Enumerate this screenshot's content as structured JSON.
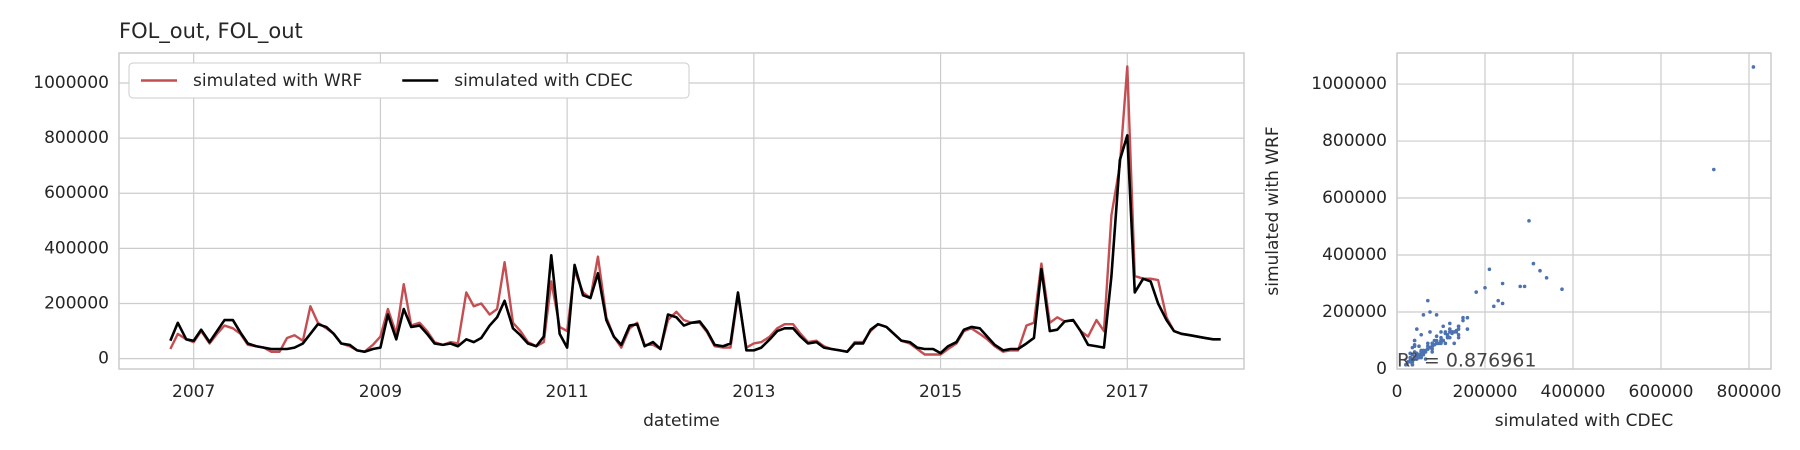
{
  "chart_data": [
    {
      "type": "line",
      "title": "FOL_out, FOL_out",
      "xlabel": "datetime",
      "x": [
        2006.75,
        2006.83,
        2006.92,
        2007,
        2007.08,
        2007.17,
        2007.25,
        2007.33,
        2007.42,
        2007.5,
        2007.58,
        2007.67,
        2007.75,
        2007.83,
        2007.92,
        2008,
        2008.08,
        2008.17,
        2008.25,
        2008.33,
        2008.42,
        2008.5,
        2008.58,
        2008.67,
        2008.75,
        2008.83,
        2008.92,
        2009,
        2009.08,
        2009.17,
        2009.25,
        2009.33,
        2009.42,
        2009.5,
        2009.58,
        2009.67,
        2009.75,
        2009.83,
        2009.92,
        2010,
        2010.08,
        2010.17,
        2010.25,
        2010.33,
        2010.42,
        2010.5,
        2010.58,
        2010.67,
        2010.75,
        2010.83,
        2010.92,
        2011,
        2011.08,
        2011.17,
        2011.25,
        2011.33,
        2011.42,
        2011.5,
        2011.58,
        2011.67,
        2011.75,
        2011.83,
        2011.92,
        2012,
        2012.08,
        2012.17,
        2012.25,
        2012.33,
        2012.42,
        2012.5,
        2012.58,
        2012.67,
        2012.75,
        2012.83,
        2012.92,
        2013,
        2013.08,
        2013.17,
        2013.25,
        2013.33,
        2013.42,
        2013.5,
        2013.58,
        2013.67,
        2013.75,
        2013.83,
        2013.92,
        2014,
        2014.08,
        2014.17,
        2014.25,
        2014.33,
        2014.42,
        2014.5,
        2014.58,
        2014.67,
        2014.75,
        2014.83,
        2014.92,
        2015,
        2015.08,
        2015.17,
        2015.25,
        2015.33,
        2015.42,
        2015.5,
        2015.58,
        2015.67,
        2015.75,
        2015.83,
        2015.92,
        2016,
        2016.08,
        2016.17,
        2016.25,
        2016.33,
        2016.42,
        2016.5,
        2016.58,
        2016.67,
        2016.75,
        2016.83,
        2016.92,
        2017,
        2017.08,
        2017.17,
        2017.25,
        2017.33,
        2017.42,
        2017.5,
        2017.58,
        2017.67,
        2017.75,
        2017.83,
        2017.92,
        2018
      ],
      "series": [
        {
          "name": "simulated with WRF",
          "color": "#c44e52",
          "values": [
            35000,
            90000,
            70000,
            60000,
            100000,
            55000,
            90000,
            120000,
            110000,
            90000,
            50000,
            45000,
            40000,
            25000,
            25000,
            75000,
            85000,
            65000,
            190000,
            130000,
            110000,
            90000,
            55000,
            45000,
            30000,
            25000,
            50000,
            80000,
            180000,
            90000,
            270000,
            120000,
            130000,
            100000,
            60000,
            50000,
            60000,
            55000,
            240000,
            190000,
            200000,
            160000,
            180000,
            350000,
            130000,
            100000,
            60000,
            45000,
            60000,
            280000,
            115000,
            100000,
            320000,
            240000,
            220000,
            370000,
            150000,
            80000,
            40000,
            110000,
            130000,
            50000,
            50000,
            35000,
            140000,
            170000,
            140000,
            130000,
            130000,
            95000,
            45000,
            40000,
            40000,
            230000,
            40000,
            55000,
            60000,
            80000,
            110000,
            125000,
            125000,
            90000,
            60000,
            65000,
            45000,
            35000,
            30000,
            25000,
            60000,
            60000,
            100000,
            125000,
            115000,
            90000,
            65000,
            55000,
            35000,
            15000,
            15000,
            15000,
            35000,
            55000,
            100000,
            110000,
            90000,
            70000,
            45000,
            25000,
            30000,
            30000,
            120000,
            130000,
            345000,
            130000,
            150000,
            135000,
            140000,
            100000,
            80000,
            140000,
            100000,
            520000,
            700000,
            1060000,
            300000,
            290000,
            290000,
            285000,
            150000,
            100000,
            90000,
            85000,
            80000,
            75000,
            70000,
            70000
          ]
        },
        {
          "name": "simulated with CDEC",
          "color": "#000000",
          "values": [
            65000,
            130000,
            70000,
            65000,
            105000,
            60000,
            100000,
            140000,
            140000,
            95000,
            55000,
            45000,
            40000,
            35000,
            35000,
            35000,
            40000,
            55000,
            90000,
            125000,
            115000,
            90000,
            55000,
            50000,
            30000,
            25000,
            35000,
            40000,
            160000,
            70000,
            180000,
            115000,
            120000,
            90000,
            55000,
            50000,
            55000,
            45000,
            70000,
            60000,
            75000,
            120000,
            150000,
            210000,
            110000,
            85000,
            55000,
            45000,
            80000,
            375000,
            90000,
            40000,
            340000,
            230000,
            220000,
            310000,
            140000,
            80000,
            50000,
            120000,
            125000,
            45000,
            60000,
            35000,
            160000,
            150000,
            120000,
            130000,
            135000,
            100000,
            50000,
            45000,
            55000,
            240000,
            30000,
            30000,
            40000,
            70000,
            100000,
            110000,
            110000,
            80000,
            55000,
            60000,
            40000,
            35000,
            30000,
            25000,
            55000,
            55000,
            105000,
            125000,
            115000,
            90000,
            65000,
            60000,
            40000,
            35000,
            35000,
            20000,
            45000,
            60000,
            105000,
            115000,
            110000,
            80000,
            50000,
            30000,
            35000,
            35000,
            55000,
            75000,
            325000,
            100000,
            105000,
            135000,
            140000,
            100000,
            50000,
            45000,
            40000,
            300000,
            720000,
            810000,
            240000,
            290000,
            280000,
            200000,
            140000,
            100000,
            90000,
            85000,
            80000,
            75000,
            70000,
            70000
          ]
        }
      ],
      "xlim": [
        2006.2,
        2018.25
      ],
      "xticks": [
        2007,
        2009,
        2011,
        2013,
        2015,
        2017
      ],
      "ylim": [
        -37600,
        1108800
      ],
      "yticks": [
        0,
        200000,
        400000,
        600000,
        800000,
        1000000
      ],
      "grid": true,
      "legend": "upper left"
    },
    {
      "type": "scatter",
      "xlabel": "simulated with CDEC",
      "ylabel": "simulated with WRF",
      "color": "#4c72b0",
      "annotation": "R² = 0.876961",
      "x": [
        65000,
        130000,
        70000,
        65000,
        105000,
        60000,
        100000,
        140000,
        140000,
        95000,
        55000,
        45000,
        40000,
        35000,
        35000,
        35000,
        40000,
        55000,
        90000,
        125000,
        115000,
        90000,
        55000,
        50000,
        30000,
        25000,
        35000,
        40000,
        160000,
        70000,
        180000,
        115000,
        120000,
        90000,
        55000,
        50000,
        55000,
        45000,
        70000,
        60000,
        75000,
        120000,
        150000,
        210000,
        110000,
        85000,
        55000,
        45000,
        80000,
        375000,
        90000,
        40000,
        340000,
        230000,
        220000,
        310000,
        140000,
        80000,
        50000,
        120000,
        125000,
        45000,
        60000,
        35000,
        160000,
        150000,
        120000,
        130000,
        135000,
        100000,
        50000,
        45000,
        55000,
        240000,
        30000,
        30000,
        40000,
        70000,
        100000,
        110000,
        110000,
        80000,
        55000,
        60000,
        40000,
        35000,
        30000,
        25000,
        55000,
        55000,
        105000,
        125000,
        115000,
        90000,
        65000,
        60000,
        40000,
        35000,
        35000,
        20000,
        45000,
        60000,
        105000,
        115000,
        110000,
        80000,
        50000,
        30000,
        35000,
        35000,
        55000,
        75000,
        325000,
        100000,
        105000,
        135000,
        140000,
        100000,
        50000,
        45000,
        40000,
        300000,
        720000,
        810000,
        240000,
        290000,
        280000,
        200000,
        140000,
        100000,
        90000,
        85000,
        80000,
        75000,
        70000,
        70000
      ],
      "values": [
        35000,
        90000,
        70000,
        60000,
        100000,
        55000,
        90000,
        120000,
        110000,
        90000,
        50000,
        45000,
        40000,
        25000,
        25000,
        75000,
        85000,
        65000,
        190000,
        130000,
        110000,
        90000,
        55000,
        45000,
        30000,
        25000,
        50000,
        80000,
        180000,
        90000,
        270000,
        120000,
        130000,
        100000,
        60000,
        50000,
        60000,
        55000,
        240000,
        190000,
        200000,
        160000,
        180000,
        350000,
        130000,
        100000,
        60000,
        45000,
        60000,
        280000,
        115000,
        100000,
        320000,
        240000,
        220000,
        370000,
        150000,
        80000,
        40000,
        110000,
        130000,
        50000,
        50000,
        35000,
        140000,
        170000,
        140000,
        130000,
        130000,
        95000,
        45000,
        40000,
        40000,
        230000,
        40000,
        55000,
        60000,
        80000,
        110000,
        125000,
        125000,
        90000,
        60000,
        65000,
        45000,
        35000,
        30000,
        25000,
        60000,
        60000,
        100000,
        125000,
        115000,
        90000,
        65000,
        55000,
        35000,
        15000,
        15000,
        15000,
        35000,
        55000,
        100000,
        110000,
        90000,
        70000,
        45000,
        25000,
        30000,
        30000,
        120000,
        130000,
        345000,
        130000,
        150000,
        135000,
        140000,
        100000,
        80000,
        140000,
        100000,
        520000,
        700000,
        1060000,
        300000,
        290000,
        290000,
        285000,
        150000,
        100000,
        90000,
        85000,
        80000,
        75000,
        70000,
        70000
      ],
      "xlim": [
        0,
        850000
      ],
      "xticks": [
        0,
        200000,
        400000,
        600000,
        800000
      ],
      "ylim": [
        0,
        1109000
      ],
      "yticks": [
        0,
        200000,
        400000,
        600000,
        800000,
        1000000
      ],
      "grid": true
    }
  ]
}
